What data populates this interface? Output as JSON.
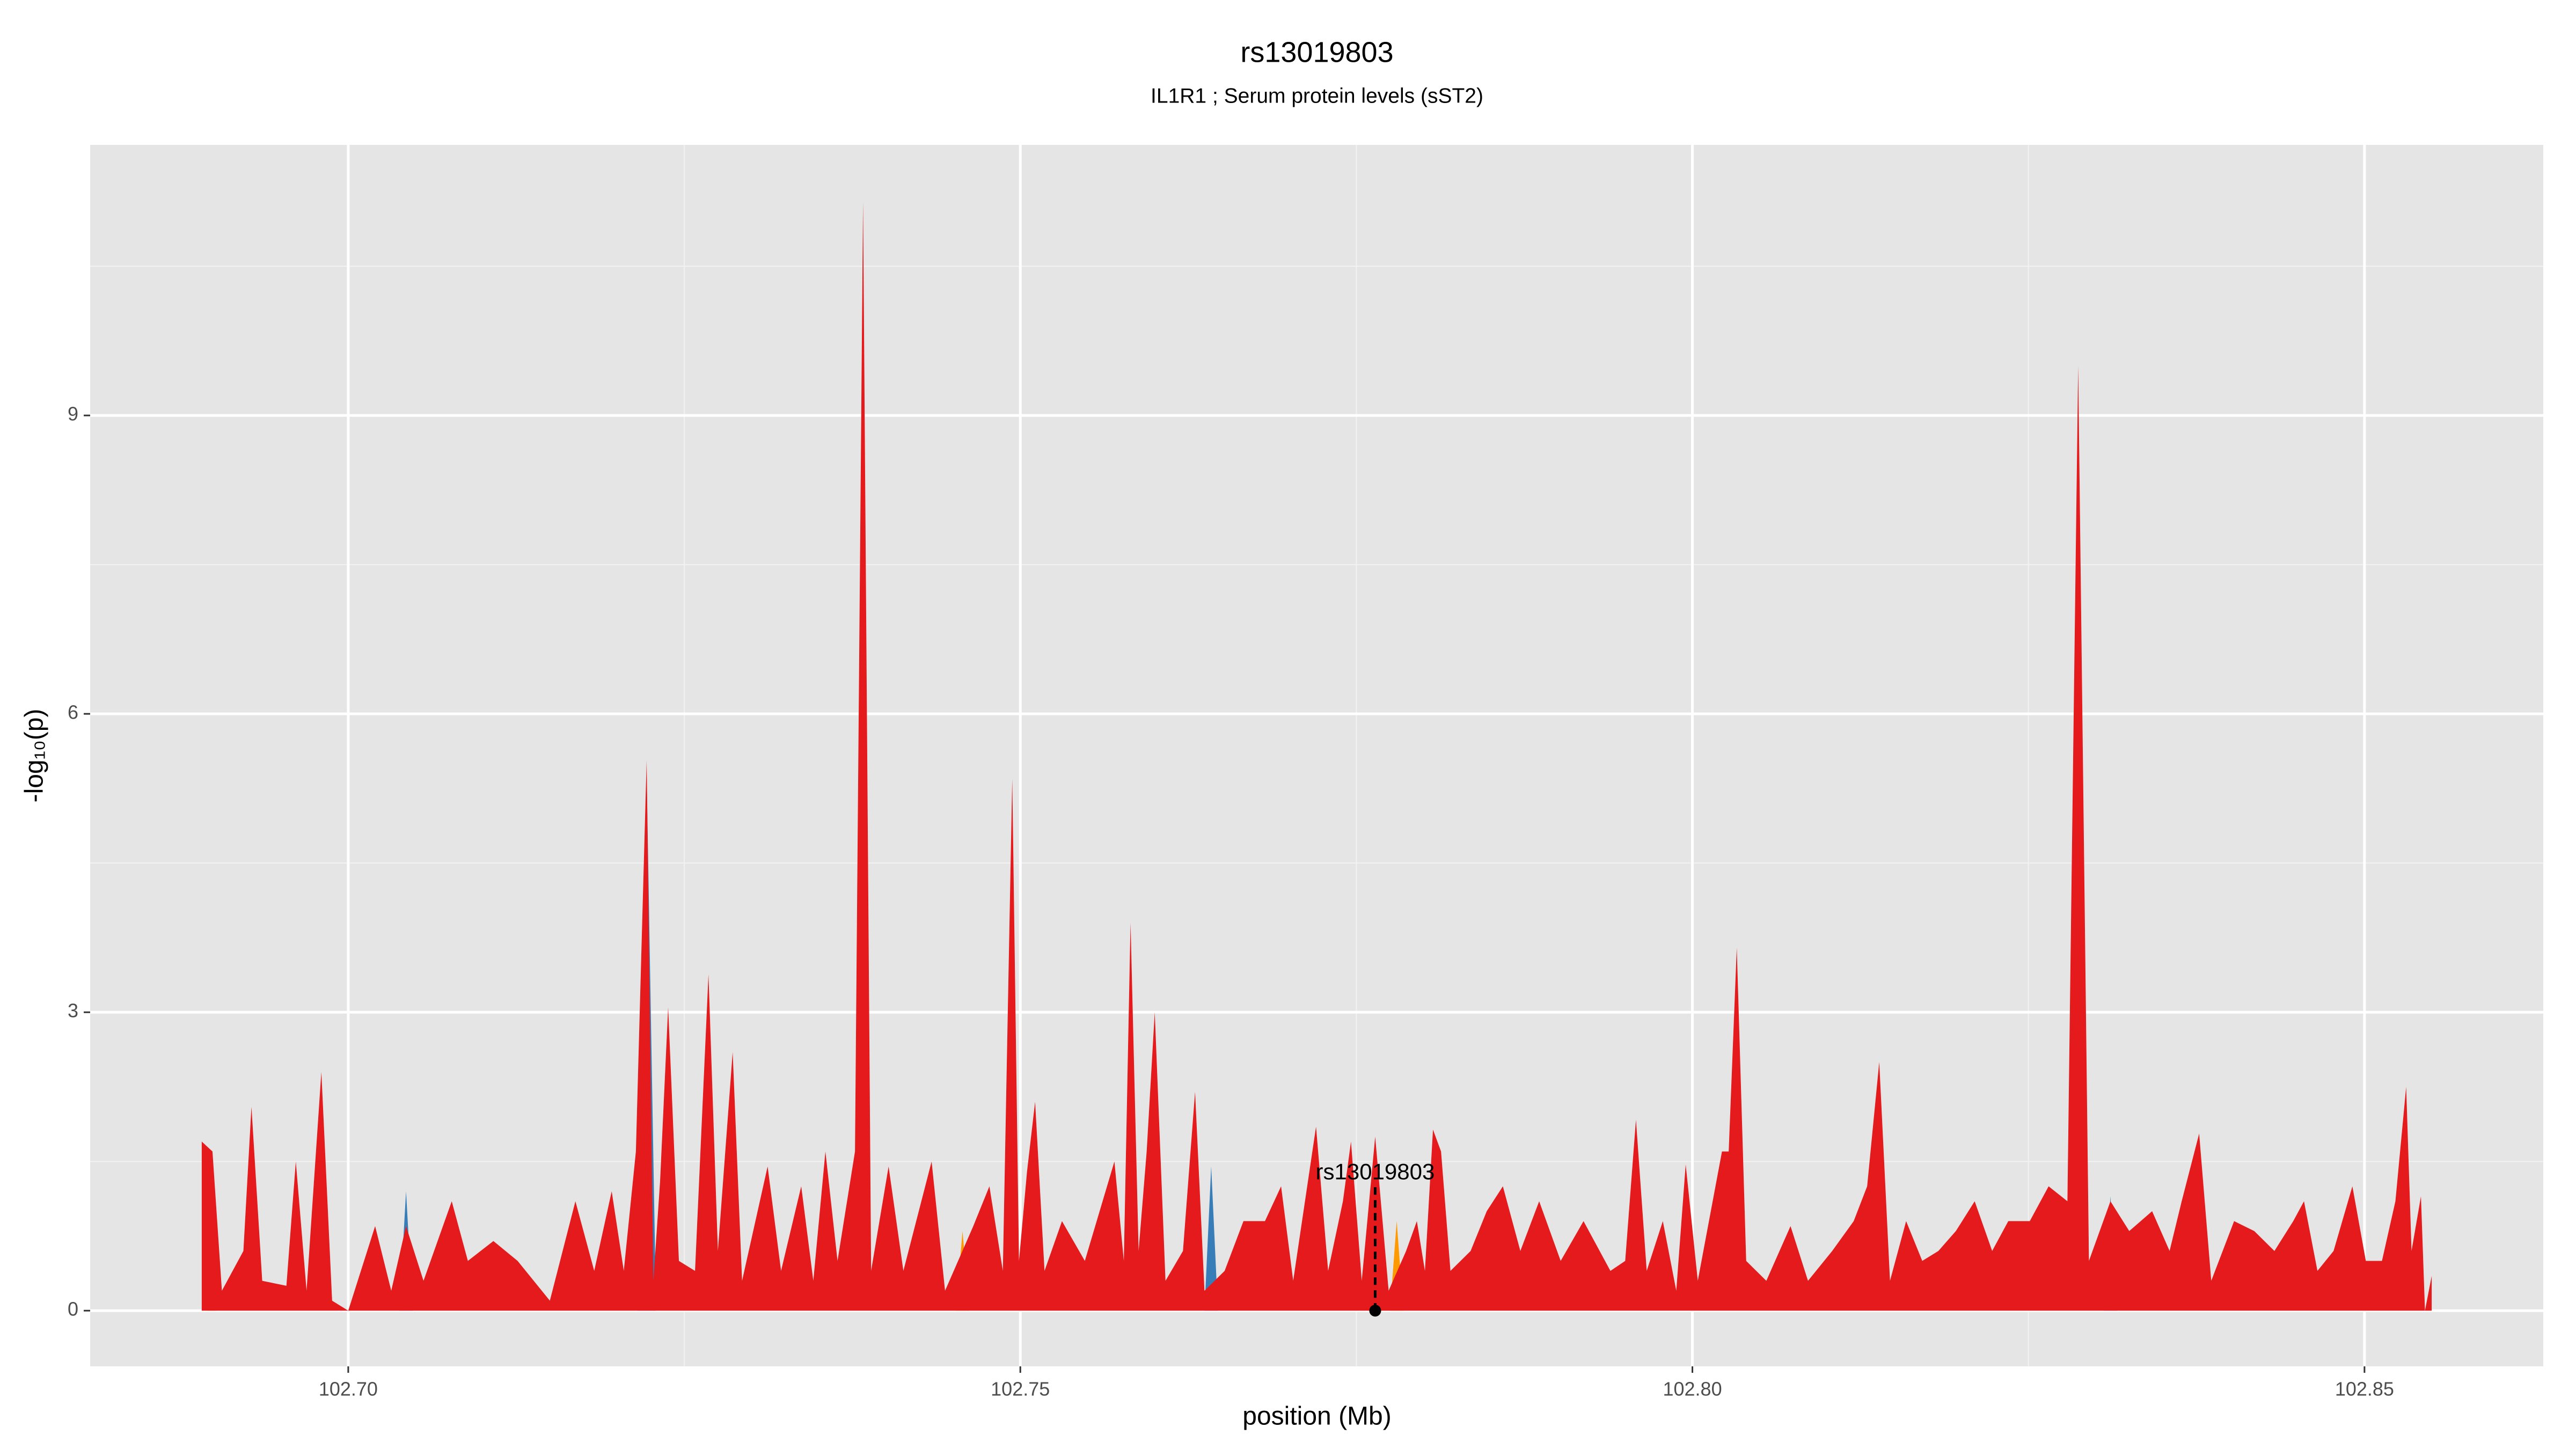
{
  "chart_data": {
    "type": "area",
    "title": "rs13019803",
    "subtitle": "IL1R1 ; Serum protein levels (sST2)",
    "x_label": "position (Mb)",
    "y_label": "-log₁₀(p)",
    "xlim": [
      102.6808,
      102.8633
    ],
    "ylim": [
      -0.56,
      11.72
    ],
    "xticks": [
      {
        "value": 102.7,
        "label": "102.70"
      },
      102.75,
      {
        "value": 102.8,
        "label": "102.80"
      },
      102.85
    ],
    "yticks": [
      0,
      3,
      6,
      9
    ],
    "grid": true,
    "background": "#e5e5e5",
    "series": [
      {
        "color": "#377eb8",
        "x": [
          102.7038,
          102.7043,
          102.7048,
          102.7215,
          102.7222,
          102.7229,
          102.7637,
          102.7642,
          102.7647,
          102.8306,
          102.8311,
          102.8316
        ],
        "values": [
          0,
          1.2,
          0,
          0,
          5.4,
          0,
          0,
          1.45,
          0,
          0,
          1.15,
          0
        ]
      },
      {
        "color": "#ff9900",
        "x": [
          102.6895,
          102.6899,
          102.6902,
          102.7452,
          102.7457,
          102.7462,
          102.7775,
          102.778,
          102.7785
        ],
        "values": [
          0,
          1.2,
          0,
          0,
          0.8,
          0,
          0,
          0.9,
          0
        ]
      },
      {
        "color": "#e41a1c",
        "x": [
          102.6891,
          102.6891,
          102.6899,
          102.6906,
          102.6922,
          102.6928,
          102.6936,
          102.6954,
          102.6961,
          102.6969,
          102.698,
          102.6988,
          102.7,
          102.702,
          102.7032,
          102.7043,
          102.7056,
          102.7077,
          102.7089,
          102.7108,
          102.7126,
          102.715,
          102.7169,
          102.7183,
          102.7196,
          102.7205,
          102.7214,
          102.7222,
          102.7227,
          102.7232,
          102.7238,
          102.7246,
          102.7258,
          102.7268,
          102.7275,
          102.7286,
          102.7293,
          102.7312,
          102.7322,
          102.7337,
          102.7346,
          102.7355,
          102.7364,
          102.7377,
          102.7383,
          102.7389,
          102.7402,
          102.7413,
          102.7434,
          102.7444,
          102.7465,
          102.7477,
          102.7487,
          102.7494,
          102.7499,
          102.7505,
          102.7511,
          102.7518,
          102.7531,
          102.7548,
          102.757,
          102.7577,
          102.7582,
          102.7588,
          102.7594,
          102.76,
          102.7608,
          102.7621,
          102.763,
          102.7637,
          102.7652,
          102.7666,
          102.7682,
          102.7694,
          102.7703,
          102.772,
          102.7729,
          102.774,
          102.7746,
          102.7754,
          102.7764,
          102.7774,
          102.7787,
          102.7795,
          102.7801,
          102.7807,
          102.7813,
          102.782,
          102.7835,
          102.7847,
          102.7859,
          102.7872,
          102.7886,
          102.7902,
          102.7919,
          102.7939,
          102.795,
          102.7958,
          102.7966,
          102.7978,
          102.7988,
          102.7995,
          102.8004,
          102.8022,
          102.8027,
          102.8033,
          102.804,
          102.8055,
          102.8073,
          102.8086,
          102.8104,
          102.812,
          102.813,
          102.8139,
          102.8147,
          102.8159,
          102.8171,
          102.8183,
          102.8196,
          102.821,
          102.8223,
          102.8235,
          102.8251,
          102.8265,
          102.8279,
          102.8287,
          102.8295,
          102.8311,
          102.8325,
          102.8342,
          102.8355,
          102.8364,
          102.8377,
          102.8386,
          102.8403,
          102.8418,
          102.8433,
          102.8447,
          102.8455,
          102.8465,
          102.8477,
          102.8491,
          102.8501,
          102.8513,
          102.8523,
          102.8531,
          102.8535,
          102.8542,
          102.8545,
          102.855,
          102.855
        ],
        "values": [
          0,
          1.7,
          1.6,
          0.2,
          0.6,
          2.05,
          0.3,
          0.25,
          1.5,
          0.2,
          2.4,
          0.1,
          0,
          0.85,
          0.2,
          0.85,
          0.3,
          1.1,
          0.5,
          0.7,
          0.5,
          0.1,
          1.1,
          0.4,
          1.2,
          0.4,
          1.6,
          5.53,
          0.3,
          1.3,
          3.05,
          0.5,
          0.4,
          3.38,
          0.6,
          2.6,
          0.3,
          1.45,
          0.4,
          1.25,
          0.3,
          1.6,
          0.5,
          1.6,
          11.15,
          0.4,
          1.45,
          0.4,
          1.5,
          0.2,
          0.85,
          1.25,
          0.4,
          5.35,
          0.5,
          1.4,
          2.1,
          0.4,
          0.9,
          0.5,
          1.5,
          0.5,
          3.9,
          0.6,
          1.6,
          3.0,
          0.3,
          0.6,
          2.2,
          0.2,
          0.4,
          0.9,
          0.9,
          1.25,
          0.3,
          1.85,
          0.4,
          1.1,
          1.7,
          0.3,
          1.75,
          0.2,
          0.6,
          0.9,
          0.4,
          1.82,
          1.6,
          0.4,
          0.6,
          1.0,
          1.25,
          0.6,
          1.1,
          0.5,
          0.9,
          0.4,
          0.5,
          1.92,
          0.4,
          0.9,
          0.2,
          1.47,
          0.3,
          1.6,
          1.6,
          3.65,
          0.5,
          0.3,
          0.85,
          0.3,
          0.6,
          0.9,
          1.25,
          2.5,
          0.3,
          0.9,
          0.5,
          0.6,
          0.8,
          1.1,
          0.6,
          0.9,
          0.9,
          1.25,
          1.1,
          9.5,
          0.5,
          1.1,
          0.8,
          1.0,
          0.6,
          1.1,
          1.78,
          0.3,
          0.9,
          0.8,
          0.6,
          0.9,
          1.1,
          0.4,
          0.6,
          1.25,
          0.5,
          0.5,
          1.1,
          2.25,
          0.6,
          1.15,
          0,
          0.35,
          0
        ]
      }
    ],
    "annotation": {
      "text": "rs13019803",
      "x": 102.7764,
      "y": 0
    }
  }
}
